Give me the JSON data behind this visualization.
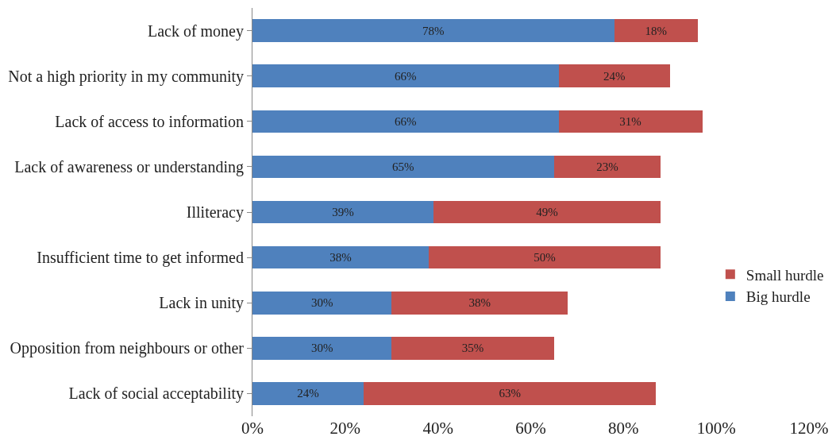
{
  "chart_data": {
    "type": "bar",
    "orientation": "horizontal",
    "stacked": true,
    "categories": [
      "Lack of money",
      "Not a high priority in my community",
      "Lack of access to information",
      "Lack of awareness or understanding",
      "Illiteracy",
      "Insufficient time to get informed",
      "Lack in unity",
      "Opposition from neighbours or other",
      "Lack of social acceptability"
    ],
    "series": [
      {
        "name": "Big hurdle",
        "color": "#4f81bd",
        "values": [
          78,
          66,
          66,
          65,
          39,
          38,
          30,
          30,
          24
        ],
        "value_labels": [
          "78%",
          "66%",
          "66%",
          "65%",
          "39%",
          "38%",
          "30%",
          "30%",
          "24%"
        ]
      },
      {
        "name": "Small hurdle",
        "color": "#c0504d",
        "values": [
          18,
          24,
          31,
          23,
          49,
          50,
          38,
          35,
          63
        ],
        "value_labels": [
          "18%",
          "24%",
          "31%",
          "23%",
          "49%",
          "50%",
          "38%",
          "35%",
          "63%"
        ]
      }
    ],
    "xlim": [
      0,
      120
    ],
    "xticks": [
      {
        "value": 0,
        "label": "0%"
      },
      {
        "value": 20,
        "label": "20%"
      },
      {
        "value": 40,
        "label": "40%"
      },
      {
        "value": 60,
        "label": "60%"
      },
      {
        "value": 80,
        "label": "80%"
      },
      {
        "value": 100,
        "label": "100%"
      },
      {
        "value": 120,
        "label": "120%"
      }
    ],
    "grid": false,
    "legend": "right"
  }
}
